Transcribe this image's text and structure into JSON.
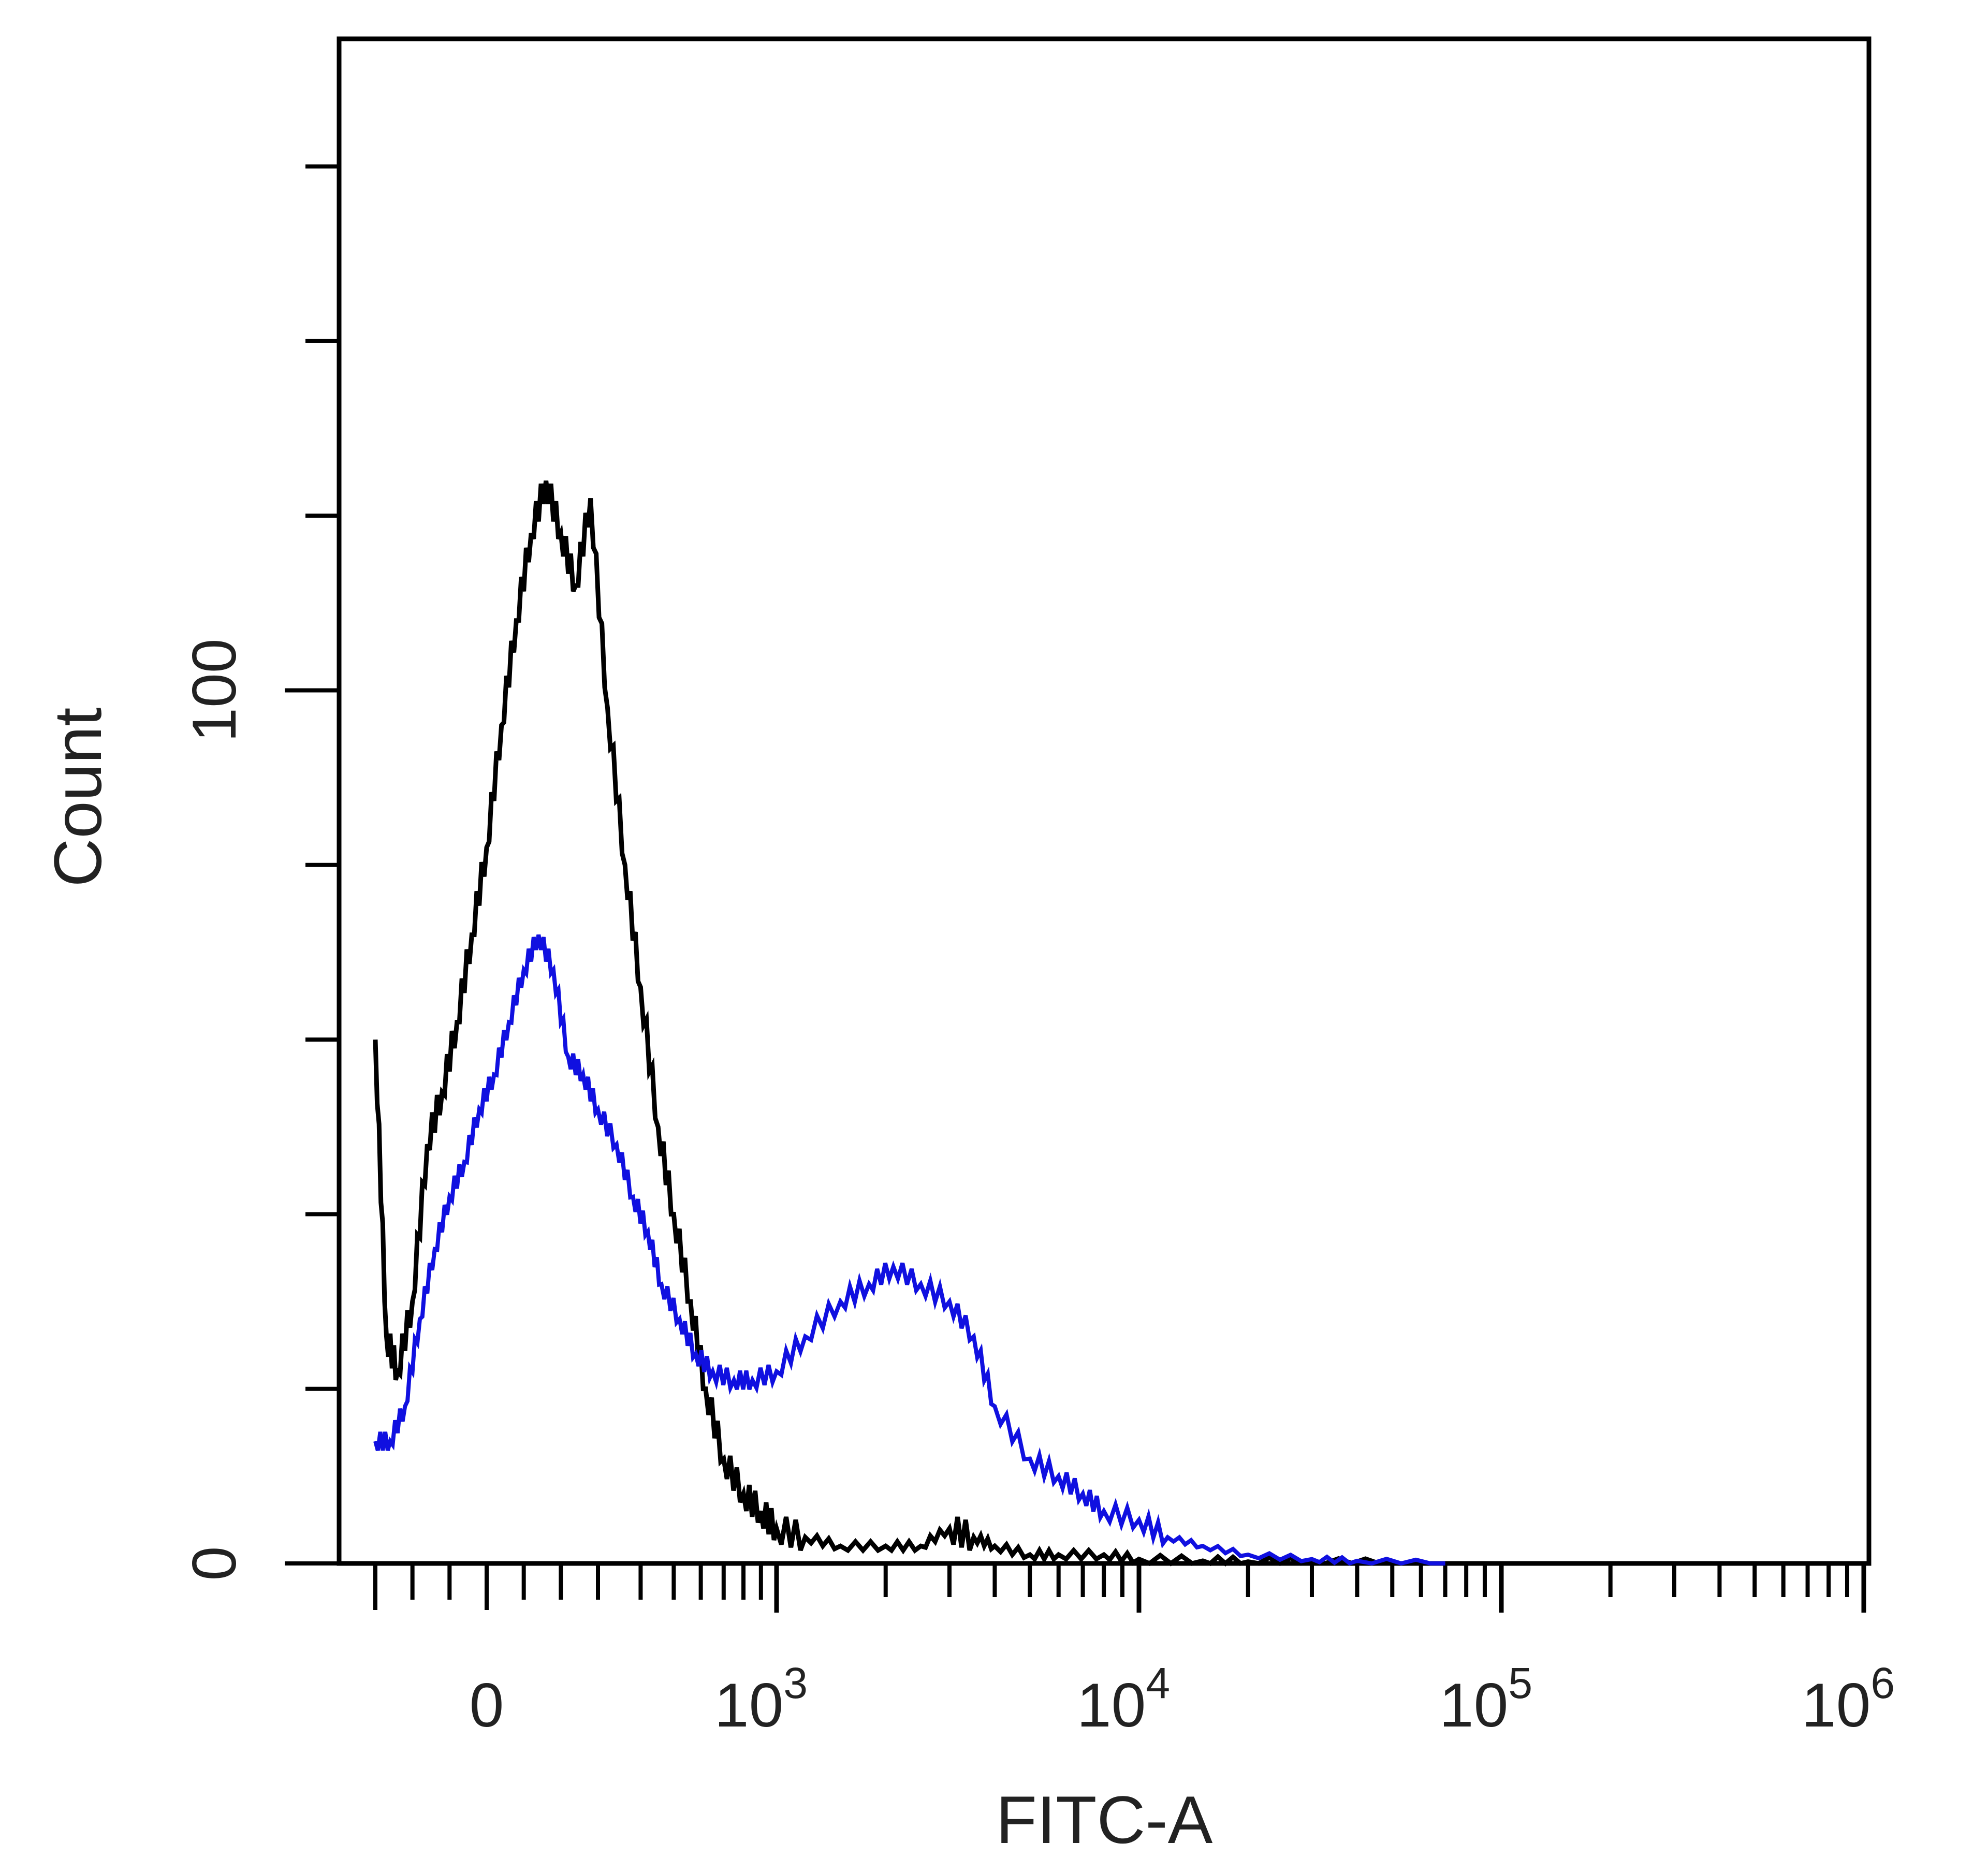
{
  "chart_data": {
    "type": "line",
    "title": "",
    "xlabel": "FITC-A",
    "ylabel": "Count",
    "x_scale": "biexponential",
    "x_tick_labels": [
      {
        "base": "0",
        "exp": "",
        "value": 0
      },
      {
        "base": "10",
        "exp": "3",
        "value": 1000
      },
      {
        "base": "10",
        "exp": "4",
        "value": 10000
      },
      {
        "base": "10",
        "exp": "5",
        "value": 100000
      },
      {
        "base": "10",
        "exp": "6",
        "value": 1000000
      }
    ],
    "y_tick_labels": [
      {
        "text": "0",
        "value": 0
      },
      {
        "text": "100",
        "value": 100
      }
    ],
    "xlim": [
      -300,
      1000000
    ],
    "ylim": [
      0,
      172
    ],
    "grid": false,
    "series": [
      {
        "color": "#000000",
        "x": [
          -300,
          -270,
          -240,
          -200,
          -160,
          -120,
          -80,
          -40,
          0,
          40,
          80,
          120,
          160,
          200,
          240,
          280,
          320,
          360,
          400,
          450,
          500,
          560,
          620,
          700,
          800,
          900,
          1000,
          1200,
          1500,
          2000,
          2500,
          3000,
          3500,
          4000,
          5000,
          6000,
          8000,
          10000,
          15000,
          20000,
          30000,
          50000
        ],
        "y": [
          60,
          26,
          22,
          30,
          48,
          54,
          62,
          72,
          82,
          96,
          108,
          118,
          124,
          118,
          112,
          122,
          98,
          80,
          66,
          50,
          40,
          30,
          20,
          12,
          8,
          6,
          4,
          3,
          2,
          2,
          2,
          4,
          3,
          2,
          1,
          1,
          1,
          0.5,
          0.3,
          0.2,
          0.1,
          0
        ]
      },
      {
        "color": "#1010e0",
        "x": [
          -300,
          -260,
          -220,
          -180,
          -140,
          -100,
          -60,
          -20,
          20,
          60,
          100,
          140,
          180,
          220,
          260,
          300,
          340,
          380,
          420,
          460,
          520,
          580,
          650,
          750,
          850,
          1000,
          1200,
          1500,
          1800,
          2100,
          2500,
          3000,
          3500,
          4000,
          5000,
          6000,
          7000,
          8000,
          10000,
          12000,
          15000,
          20000,
          30000,
          40000,
          70000
        ],
        "y": [
          14,
          14,
          18,
          28,
          36,
          42,
          46,
          52,
          56,
          62,
          68,
          72,
          68,
          58,
          56,
          52,
          48,
          42,
          38,
          32,
          28,
          24,
          22,
          21,
          21,
          22,
          26,
          30,
          32,
          34,
          32,
          30,
          26,
          18,
          12,
          10,
          8,
          6,
          5,
          3,
          2,
          1,
          0.5,
          0.3,
          0
        ]
      }
    ]
  }
}
